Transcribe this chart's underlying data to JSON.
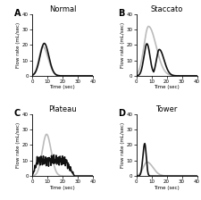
{
  "panels": [
    {
      "label": "A",
      "title": "Normal",
      "gray_peak": 19,
      "gray_peak_time": 7.0,
      "gray_sigma_l": 2.5,
      "gray_sigma_r": 3.5,
      "black_peak": 21,
      "black_peak_time": 8.0,
      "black_sigma_l": 2.8,
      "black_sigma_r": 3.0,
      "black_shape": "normal"
    },
    {
      "label": "B",
      "title": "Staccato",
      "gray_peak": 32,
      "gray_peak_time": 8.0,
      "gray_sigma_l": 3.0,
      "gray_sigma_r": 5.0,
      "black_peak": 21,
      "black_peak_time": 7.0,
      "black_sigma_l": 2.0,
      "black_sigma_r": 2.5,
      "black_shape": "staccato"
    },
    {
      "label": "C",
      "title": "Plateau",
      "gray_peak": 27,
      "gray_peak_time": 9.5,
      "gray_sigma_l": 2.8,
      "gray_sigma_r": 3.0,
      "black_peak": 10,
      "black_shape": "plateau",
      "plateau_rise_end": 3.5,
      "plateau_flat_end": 22.0,
      "plateau_fall_end": 28.0
    },
    {
      "label": "D",
      "title": "Tower",
      "gray_peak": 9,
      "gray_peak_time": 7.0,
      "gray_sigma_l": 2.5,
      "gray_sigma_r": 4.0,
      "black_peak": 21,
      "black_peak_time": 5.5,
      "black_sigma_l": 1.2,
      "black_sigma_r": 1.0,
      "black_shape": "tower"
    }
  ],
  "xlim": [
    0,
    40
  ],
  "ylim": [
    0,
    40
  ],
  "xticks": [
    0,
    10,
    20,
    30,
    40
  ],
  "yticks": [
    0,
    10,
    20,
    30,
    40
  ],
  "xlabel": "Time (sec)",
  "ylabel": "Flow rate (mL/sec)",
  "gray_color": "#bbbbbb",
  "black_color": "#111111",
  "lw": 1.2
}
